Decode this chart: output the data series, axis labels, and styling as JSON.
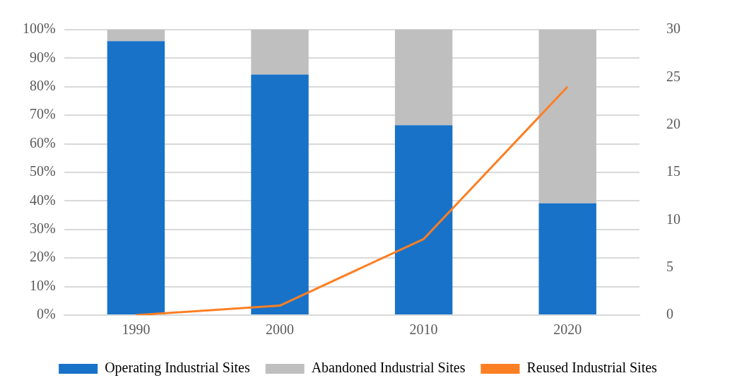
{
  "chart_data": {
    "type": "bar",
    "stacked": true,
    "categories": [
      "1990",
      "2000",
      "2010",
      "2020"
    ],
    "series": [
      {
        "name": "Operating Industrial Sites",
        "color": "#1872c8",
        "values": [
          96,
          84.3,
          66.5,
          39.2
        ]
      },
      {
        "name": "Abandoned Industrial Sites",
        "color": "#bfbfbf",
        "values": [
          4,
          15.7,
          33.5,
          60.8
        ]
      },
      {
        "name": "Reused Industrial Sites",
        "type": "line",
        "axis": "y2",
        "color": "#fd7f23",
        "values": [
          0,
          1,
          8,
          24
        ]
      }
    ],
    "ylim": [
      0,
      100
    ],
    "yticks": [
      {
        "value": 0,
        "label": "0%"
      },
      {
        "value": 10,
        "label": "10%"
      },
      {
        "value": 20,
        "label": "20%"
      },
      {
        "value": 30,
        "label": "30%"
      },
      {
        "value": 40,
        "label": "40%"
      },
      {
        "value": 50,
        "label": "50%"
      },
      {
        "value": 60,
        "label": "60%"
      },
      {
        "value": 70,
        "label": "70%"
      },
      {
        "value": 80,
        "label": "80%"
      },
      {
        "value": 90,
        "label": "90%"
      },
      {
        "value": 100,
        "label": "100%"
      }
    ],
    "y2lim": [
      0,
      30
    ],
    "y2ticks": [
      0,
      5,
      10,
      15,
      20,
      25,
      30
    ],
    "grid": "y",
    "legend": "bottom",
    "marker": "none",
    "line_style": "solid"
  }
}
